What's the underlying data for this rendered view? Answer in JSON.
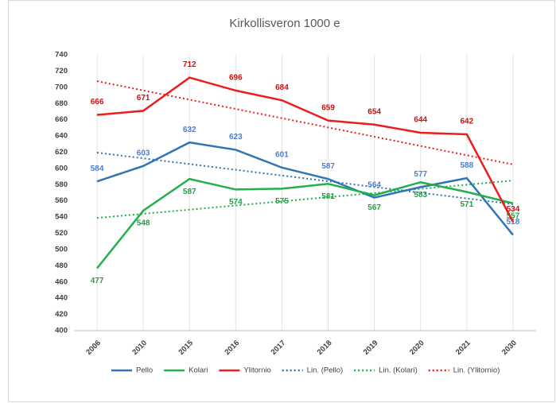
{
  "chart_data": {
    "type": "line",
    "title": "Kirkollisveron  1000 e",
    "categories": [
      "2006",
      "2010",
      "2015",
      "2016",
      "2017",
      "2018",
      "2019",
      "2020",
      "2021",
      "2030"
    ],
    "series": [
      {
        "name": "Pello",
        "color": "#2e75b6",
        "label_color": "#4a7fd6",
        "label_position": "above",
        "values": [
          584,
          603,
          632,
          623,
          601,
          587,
          564,
          577,
          588,
          518
        ],
        "trendline": {
          "name": "Lin. (Pello)",
          "type": "linear"
        }
      },
      {
        "name": "Kolari",
        "color": "#22b04b",
        "label_color": "#22a045",
        "label_position": "below",
        "values": [
          477,
          548,
          587,
          574,
          575,
          581,
          567,
          583,
          571,
          557
        ],
        "trendline": {
          "name": "Lin. (Kolari)",
          "type": "linear"
        }
      },
      {
        "name": "Ylitornio",
        "color": "#ee1c1c",
        "label_color": "#d01010",
        "label_position": "above",
        "values": [
          666,
          671,
          712,
          696,
          684,
          659,
          654,
          644,
          642,
          534
        ],
        "trendline": {
          "name": "Lin. (Ylitornio)",
          "type": "linear"
        }
      }
    ],
    "ylim": [
      400,
      740
    ],
    "yticks": [
      400,
      420,
      440,
      460,
      480,
      500,
      520,
      540,
      560,
      580,
      600,
      620,
      640,
      660,
      680,
      700,
      720,
      740
    ],
    "xgrid": true,
    "legend": "bottom"
  }
}
